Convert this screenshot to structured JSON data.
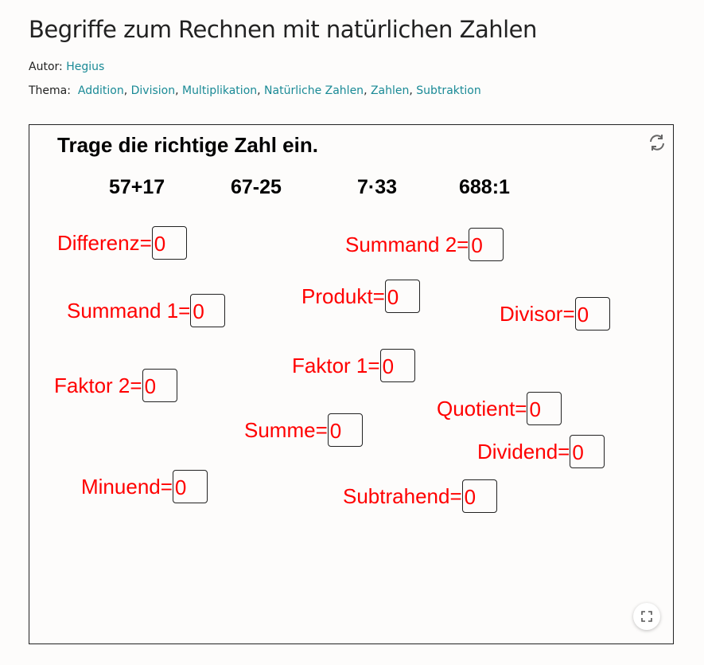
{
  "title": "Begriffe zum Rechnen mit natürlichen Zahlen",
  "author_label": "Autor:",
  "author": "Hegius",
  "topic_label": "Thema:",
  "topics": [
    "Addition",
    "Division",
    "Multiplikation",
    "Natürliche Zahlen",
    "Zahlen",
    "Subtraktion"
  ],
  "applet": {
    "task": "Trage die richtige Zahl ein.",
    "expressions": [
      "57+17",
      "67-25",
      "7·33",
      "688:1"
    ],
    "fields": [
      {
        "label": "Differenz=",
        "value": "0"
      },
      {
        "label": "Summand 2=",
        "value": "0"
      },
      {
        "label": "Produkt=",
        "value": "0"
      },
      {
        "label": "Summand 1=",
        "value": "0"
      },
      {
        "label": "Divisor=",
        "value": "0"
      },
      {
        "label": "Faktor 1=",
        "value": "0"
      },
      {
        "label": "Faktor 2=",
        "value": "0"
      },
      {
        "label": "Quotient=",
        "value": "0"
      },
      {
        "label": "Summe=",
        "value": "0"
      },
      {
        "label": "Dividend=",
        "value": "0"
      },
      {
        "label": "Minuend=",
        "value": "0"
      },
      {
        "label": "Subtrahend=",
        "value": "0"
      }
    ],
    "icons": {
      "reset": "refresh-icon",
      "fullscreen": "fullscreen-icon"
    },
    "colors": {
      "label": "#ff0000",
      "link": "#1a8a96"
    }
  }
}
